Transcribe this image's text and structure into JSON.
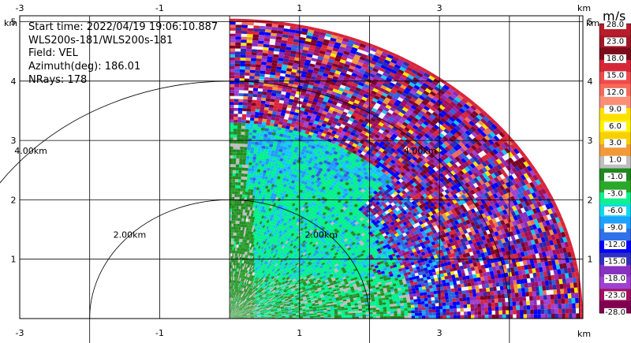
{
  "info": {
    "start_time": "Start time: 2022/04/19 19:06:10.887",
    "instrument": "WLS200s-181/WLS200s-181",
    "field": "Field: VEL",
    "azimuth": "Azimuth(deg): 186.01",
    "nrays": "NRays: 178"
  },
  "chart_data": {
    "type": "heatmap",
    "projection": "polar-sector (PPI quarter)",
    "units_axis": "km",
    "x_ticks": [
      "-3",
      "-1",
      "1",
      "3"
    ],
    "y_ticks": [
      "1",
      "2",
      "3",
      "4",
      "5"
    ],
    "xlim": [
      -3.0,
      5.05
    ],
    "ylim": [
      0,
      5.1
    ],
    "grid": true,
    "range_rings": [
      {
        "radius_km": 2.0,
        "label": "2.00km"
      },
      {
        "radius_km": 4.0,
        "label": "4.00km"
      }
    ],
    "sector_azimuth_deg": [
      0,
      90
    ],
    "max_range_km": 5.05,
    "colorbar": {
      "unit": "m/s",
      "labels": [
        "28.0",
        "23.0",
        "18.0",
        "15.0",
        "12.0",
        "9.0",
        "6.0",
        "3.0",
        "1.0",
        "-1.0",
        "-3.0",
        "-6.0",
        "-9.0",
        "-12.0",
        "-15.0",
        "-18.0",
        "-23.0",
        "-28.0"
      ],
      "colors": [
        "#b81d2c",
        "#a11826",
        "#7d0c1a",
        "#d62738",
        "#f04a4a",
        "#f66a5a",
        "#fa8f78",
        "#fde000",
        "#fff200",
        "#f8d000",
        "#f09a3a",
        "#bfbfbf",
        "#208820",
        "#2aa82a",
        "#10f090",
        "#10d8f0",
        "#20a0ff",
        "#3070e8",
        "#0000ff",
        "#3030c0",
        "#8830c0",
        "#a040d0",
        "#a01060",
        "#800050"
      ]
    },
    "fields": {
      "velocity_description": "Radial velocity field (m/s)"
    }
  }
}
